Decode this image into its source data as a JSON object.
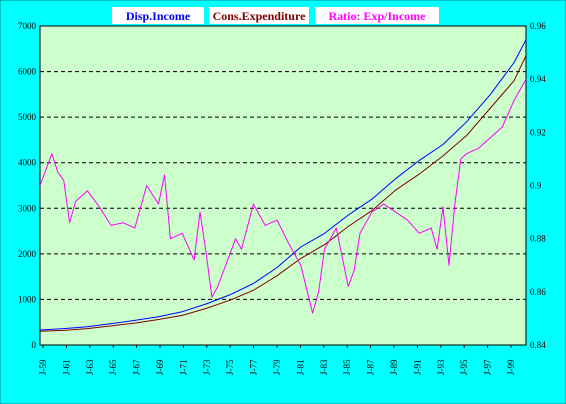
{
  "chart_data": {
    "type": "line",
    "legend_placement": "top",
    "grid": {
      "horizontal": true,
      "vertical": false
    },
    "colors": {
      "background": "#ccffcc",
      "outer": "#00ffff",
      "disp_income": "#0000ff",
      "cons_expenditure": "#800000",
      "ratio": "#ff00ff",
      "grid": "#000000"
    },
    "x": {
      "ticks": [
        "J-59",
        "J-61",
        "J-63",
        "J-65",
        "J-67",
        "J-69",
        "J-71",
        "J-73",
        "J-75",
        "J-77",
        "J-79",
        "J-81",
        "J-83",
        "J-85",
        "J-87",
        "J-89",
        "J-91",
        "J-93",
        "J-95",
        "J-97",
        "J-99"
      ],
      "range": [
        1959,
        2000
      ]
    },
    "y_left": {
      "ticks": [
        "0",
        "1000",
        "2000",
        "3000",
        "4000",
        "5000",
        "6000",
        "7000"
      ],
      "range": [
        0,
        7000
      ]
    },
    "y_right": {
      "ticks": [
        "0.84",
        "0.86",
        "0.88",
        "0.9",
        "0.92",
        "0.94",
        "0.96"
      ],
      "range": [
        0.84,
        0.96
      ]
    },
    "series": [
      {
        "name": "Disp.Income",
        "axis": "left",
        "points": [
          [
            1959,
            330
          ],
          [
            1961,
            360
          ],
          [
            1963,
            400
          ],
          [
            1965,
            470
          ],
          [
            1967,
            540
          ],
          [
            1969,
            620
          ],
          [
            1971,
            730
          ],
          [
            1973,
            900
          ],
          [
            1975,
            1100
          ],
          [
            1977,
            1350
          ],
          [
            1979,
            1700
          ],
          [
            1981,
            2150
          ],
          [
            1983,
            2450
          ],
          [
            1985,
            2850
          ],
          [
            1987,
            3200
          ],
          [
            1989,
            3650
          ],
          [
            1991,
            4050
          ],
          [
            1993,
            4400
          ],
          [
            1995,
            4900
          ],
          [
            1997,
            5500
          ],
          [
            1999,
            6200
          ],
          [
            2000,
            6700
          ]
        ]
      },
      {
        "name": "Cons.Expenditure",
        "axis": "left",
        "points": [
          [
            1959,
            300
          ],
          [
            1961,
            320
          ],
          [
            1963,
            360
          ],
          [
            1965,
            420
          ],
          [
            1967,
            480
          ],
          [
            1969,
            560
          ],
          [
            1971,
            650
          ],
          [
            1973,
            800
          ],
          [
            1975,
            980
          ],
          [
            1977,
            1200
          ],
          [
            1979,
            1520
          ],
          [
            1981,
            1900
          ],
          [
            1983,
            2200
          ],
          [
            1985,
            2600
          ],
          [
            1987,
            2950
          ],
          [
            1989,
            3400
          ],
          [
            1991,
            3750
          ],
          [
            1993,
            4150
          ],
          [
            1995,
            4600
          ],
          [
            1997,
            5200
          ],
          [
            1999,
            5800
          ],
          [
            2000,
            6350
          ]
        ]
      },
      {
        "name": "Ratio: Exp/Income",
        "axis": "right",
        "points": [
          [
            1959,
            0.9
          ],
          [
            1960,
            0.912
          ],
          [
            1960.5,
            0.905
          ],
          [
            1961,
            0.902
          ],
          [
            1961.5,
            0.886
          ],
          [
            1962,
            0.894
          ],
          [
            1963,
            0.898
          ],
          [
            1964,
            0.892
          ],
          [
            1965,
            0.885
          ],
          [
            1966,
            0.886
          ],
          [
            1967,
            0.884
          ],
          [
            1968,
            0.9
          ],
          [
            1969,
            0.893
          ],
          [
            1969.5,
            0.904
          ],
          [
            1970,
            0.88
          ],
          [
            1971,
            0.882
          ],
          [
            1972,
            0.872
          ],
          [
            1972.5,
            0.89
          ],
          [
            1973,
            0.875
          ],
          [
            1973.5,
            0.858
          ],
          [
            1974,
            0.862
          ],
          [
            1975,
            0.874
          ],
          [
            1975.5,
            0.88
          ],
          [
            1976,
            0.876
          ],
          [
            1977,
            0.893
          ],
          [
            1978,
            0.885
          ],
          [
            1979,
            0.887
          ],
          [
            1980,
            0.878
          ],
          [
            1981,
            0.87
          ],
          [
            1982,
            0.852
          ],
          [
            1982.5,
            0.86
          ],
          [
            1983,
            0.876
          ],
          [
            1984,
            0.884
          ],
          [
            1985,
            0.862
          ],
          [
            1985.5,
            0.868
          ],
          [
            1986,
            0.882
          ],
          [
            1987,
            0.89
          ],
          [
            1988,
            0.893
          ],
          [
            1989,
            0.89
          ],
          [
            1990,
            0.887
          ],
          [
            1991,
            0.882
          ],
          [
            1992,
            0.884
          ],
          [
            1992.5,
            0.876
          ],
          [
            1993,
            0.892
          ],
          [
            1993.5,
            0.87
          ],
          [
            1994,
            0.893
          ],
          [
            1994.5,
            0.91
          ],
          [
            1995,
            0.912
          ],
          [
            1996,
            0.914
          ],
          [
            1997,
            0.918
          ],
          [
            1998,
            0.922
          ],
          [
            1999,
            0.932
          ],
          [
            2000,
            0.94
          ]
        ]
      }
    ]
  }
}
